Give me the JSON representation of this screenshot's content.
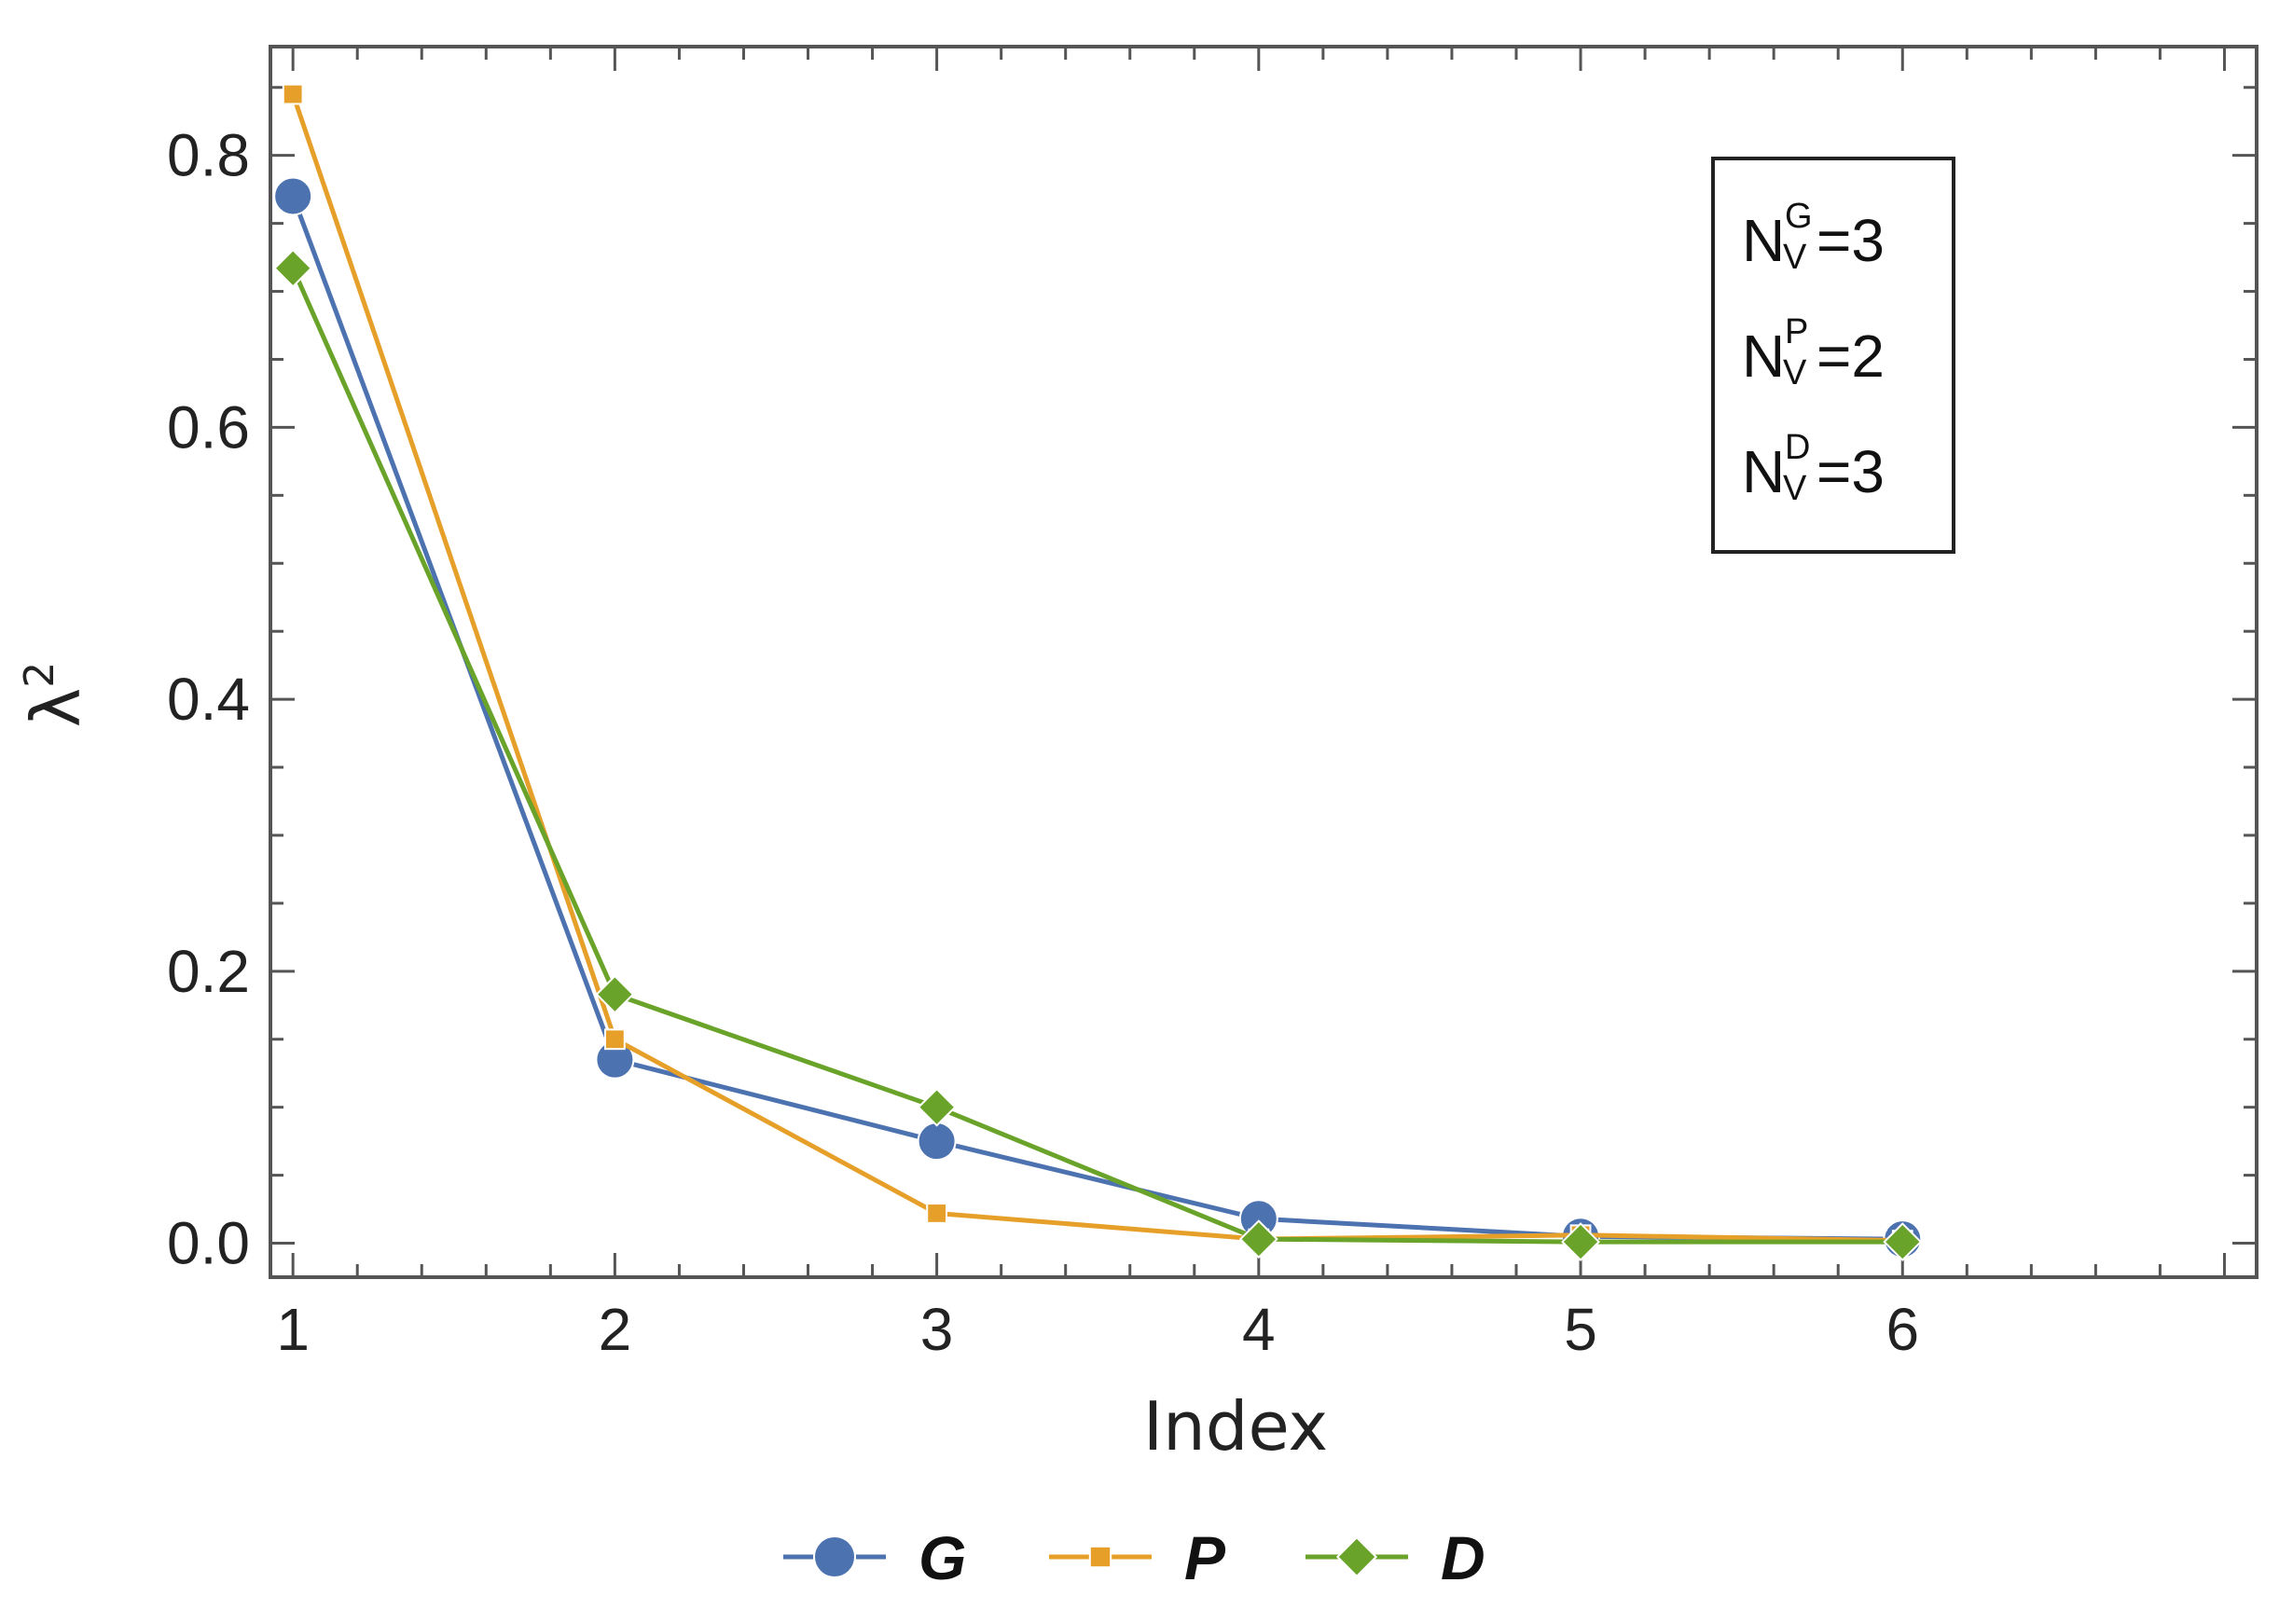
{
  "chart_data": {
    "type": "line",
    "xlabel": "Index",
    "ylabel": "λ",
    "ylabel_superscript": "2",
    "x": [
      1,
      2,
      3,
      4,
      5,
      6
    ],
    "xlim": [
      0.93,
      7.1
    ],
    "ylim": [
      -0.025,
      0.88
    ],
    "x_ticks": [
      1,
      2,
      3,
      4,
      5,
      6
    ],
    "y_ticks": [
      0.0,
      0.2,
      0.4,
      0.6,
      0.8
    ],
    "y_tick_labels": [
      "0.0",
      "0.2",
      "0.4",
      "0.6",
      "0.8"
    ],
    "grid": false,
    "legend_position": "bottom",
    "series": [
      {
        "name": "G",
        "color": "#4c72b0",
        "marker": "circle",
        "values": [
          0.77,
          0.135,
          0.075,
          0.018,
          0.005,
          0.003
        ]
      },
      {
        "name": "P",
        "color": "#e6a02a",
        "marker": "square",
        "values": [
          0.845,
          0.15,
          0.022,
          0.003,
          0.006,
          0.002
        ]
      },
      {
        "name": "D",
        "color": "#6aa329",
        "marker": "diamond",
        "values": [
          0.717,
          0.183,
          0.1,
          0.003,
          0.001,
          0.001
        ]
      }
    ],
    "annotation": {
      "lines": [
        {
          "base": "N",
          "sub": "V",
          "sup": "G",
          "value": "=3"
        },
        {
          "base": "N",
          "sub": "V",
          "sup": "P",
          "value": "=2"
        },
        {
          "base": "N",
          "sub": "V",
          "sup": "D",
          "value": "=3"
        }
      ]
    }
  }
}
